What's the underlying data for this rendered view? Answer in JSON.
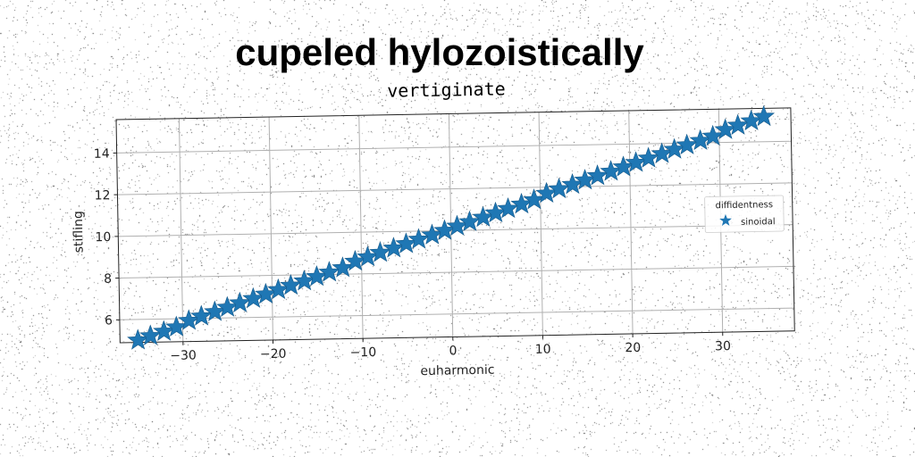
{
  "heading": "cupeled hylozoistically",
  "chart_data": {
    "type": "scatter",
    "title": "vertiginate",
    "xlabel": "euharmonic",
    "ylabel": "stifling",
    "xlim": [
      -37,
      38
    ],
    "ylim": [
      4.9,
      15.6
    ],
    "xticks": [
      -30,
      -20,
      -10,
      0,
      10,
      20,
      30
    ],
    "xtick_labels": [
      "−30",
      "−20",
      "−10",
      "0",
      "10",
      "20",
      "30"
    ],
    "yticks": [
      6,
      8,
      10,
      12,
      14
    ],
    "ytick_labels": [
      "6",
      "8",
      "10",
      "12",
      "14"
    ],
    "grid": true,
    "legend": {
      "title": "diffidentness",
      "placement": "right"
    },
    "marker": "star",
    "color": "#1f77b4",
    "series": [
      {
        "name": "sinoidal",
        "x": [
          -35,
          -33.6,
          -32.1,
          -30.7,
          -29.3,
          -27.9,
          -26.4,
          -25,
          -23.6,
          -22.1,
          -20.7,
          -19.3,
          -17.9,
          -16.4,
          -15,
          -13.6,
          -12.1,
          -10.7,
          -9.3,
          -7.9,
          -6.4,
          -5,
          -3.6,
          -2.1,
          -0.7,
          0.7,
          2.1,
          3.6,
          5,
          6.4,
          7.9,
          9.3,
          10.7,
          12.1,
          13.6,
          15,
          16.4,
          17.9,
          19.3,
          20.7,
          22.1,
          23.6,
          25,
          26.4,
          27.9,
          29.3,
          30.7,
          32.1,
          33.6,
          35
        ],
        "y": [
          5,
          5.2,
          5.4,
          5.6,
          5.9,
          6.1,
          6.3,
          6.5,
          6.7,
          6.9,
          7.1,
          7.3,
          7.5,
          7.7,
          7.9,
          8.1,
          8.3,
          8.6,
          8.8,
          9,
          9.2,
          9.4,
          9.6,
          9.8,
          10,
          10.2,
          10.4,
          10.6,
          10.8,
          11,
          11.2,
          11.4,
          11.7,
          11.9,
          12.1,
          12.3,
          12.5,
          12.7,
          12.9,
          13.1,
          13.3,
          13.5,
          13.7,
          13.9,
          14.1,
          14.3,
          14.6,
          14.8,
          15,
          15.2
        ]
      }
    ]
  }
}
